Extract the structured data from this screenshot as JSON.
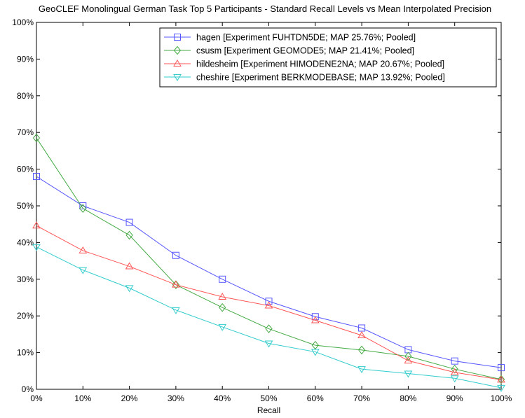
{
  "chart_data": {
    "type": "line",
    "title": "GeoCLEF Monolingual German Task Top 5 Participants - Standard Recall Levels vs Mean Interpolated Precision",
    "xlabel": "Recall",
    "ylabel": "",
    "x": [
      0,
      10,
      20,
      30,
      40,
      50,
      60,
      70,
      80,
      90,
      100
    ],
    "xticklabels": [
      "0%",
      "10%",
      "20%",
      "30%",
      "40%",
      "50%",
      "60%",
      "70%",
      "80%",
      "90%",
      "100%"
    ],
    "xlim": [
      0,
      100
    ],
    "yticks": [
      0,
      10,
      20,
      30,
      40,
      50,
      60,
      70,
      80,
      90,
      100
    ],
    "yticklabels": [
      "0%",
      "10%",
      "20%",
      "30%",
      "40%",
      "50%",
      "60%",
      "70%",
      "80%",
      "90%",
      "100%"
    ],
    "ylim": [
      0,
      100
    ],
    "grid": false,
    "legend_position": "top-right",
    "series": [
      {
        "name": "hagen [Experiment FUHTDN5DE; MAP 25.76%; Pooled]",
        "color": "#5555ff",
        "marker": "square",
        "values": [
          58.0,
          50.0,
          45.5,
          36.5,
          30.0,
          24.0,
          19.8,
          16.7,
          10.8,
          7.7,
          5.9
        ]
      },
      {
        "name": "csusm [Experiment GEOMODE5; MAP 21.41%; Pooled]",
        "color": "#44aa44",
        "marker": "diamond",
        "values": [
          68.5,
          49.3,
          42.0,
          28.5,
          22.3,
          16.5,
          12.0,
          10.7,
          9.0,
          5.5,
          2.7
        ]
      },
      {
        "name": "hildesheim [Experiment HIMODENE2NA; MAP 20.67%; Pooled]",
        "color": "#ff5555",
        "marker": "triangle-up",
        "values": [
          44.6,
          37.8,
          33.5,
          28.5,
          25.2,
          22.8,
          18.8,
          14.7,
          7.8,
          4.6,
          2.6
        ]
      },
      {
        "name": "cheshire [Experiment BERKMODEBASE; MAP 13.92%; Pooled]",
        "color": "#33cccc",
        "marker": "triangle-down",
        "values": [
          38.8,
          32.5,
          27.6,
          21.6,
          17.0,
          12.5,
          10.2,
          5.5,
          4.3,
          3.0,
          0.4
        ]
      }
    ]
  }
}
